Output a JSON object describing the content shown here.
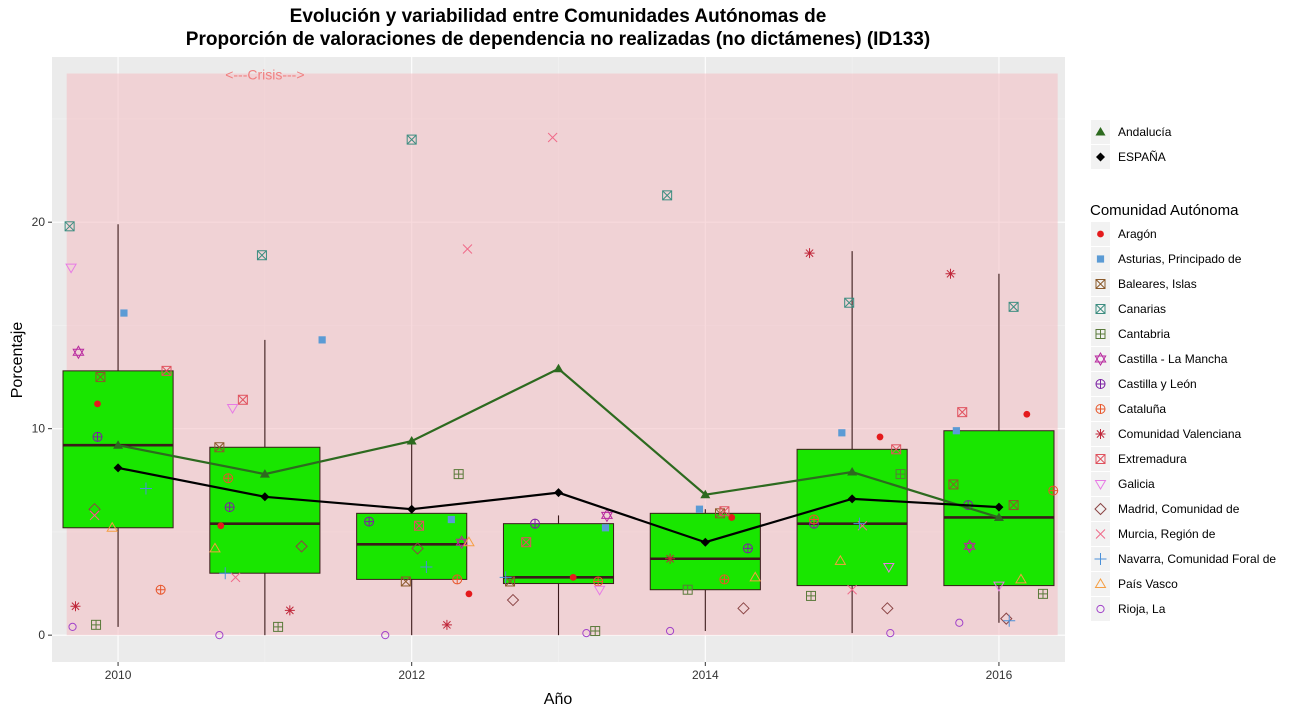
{
  "chart_data": {
    "type": "box",
    "title_line1": "Evolución y variabilidad entre Comunidades Autónomas de",
    "title_line2": "Proporción de valoraciones de dependencia no realizadas (no dictámenes) (ID133)",
    "xlabel": "Año",
    "ylabel": "Porcentaje",
    "xlim": [
      2009.55,
      2016.45
    ],
    "ylim": [
      -1.3,
      28.0
    ],
    "x_ticks": [
      2010,
      2012,
      2014,
      2016
    ],
    "y_ticks": [
      0,
      10,
      20
    ],
    "crisis_band": {
      "x": [
        2009.65,
        2016.4
      ],
      "y": [
        0,
        27.2
      ],
      "label": "<---Crisis--->",
      "label_x": 2011.0,
      "label_y": 26.9
    },
    "boxes": [
      {
        "x": 2010,
        "min": 0.4,
        "q1": 5.2,
        "median": 9.2,
        "q3": 12.8,
        "max": 19.9
      },
      {
        "x": 2011,
        "min": 0.0,
        "q1": 3.0,
        "median": 5.4,
        "q3": 9.1,
        "max": 14.3
      },
      {
        "x": 2012,
        "min": 0.0,
        "q1": 2.7,
        "median": 4.4,
        "q3": 5.9,
        "max": 9.4
      },
      {
        "x": 2013,
        "min": 0.0,
        "q1": 2.5,
        "median": 2.8,
        "q3": 5.4,
        "max": 5.8
      },
      {
        "x": 2014,
        "min": 0.2,
        "q1": 2.2,
        "median": 3.7,
        "q3": 5.9,
        "max": 6.1
      },
      {
        "x": 2015,
        "min": 0.1,
        "q1": 2.4,
        "median": 5.4,
        "q3": 9.0,
        "max": 18.6
      },
      {
        "x": 2016,
        "min": 0.6,
        "q1": 2.4,
        "median": 5.7,
        "q3": 9.9,
        "max": 17.5
      }
    ],
    "box_fill": "#19e600",
    "lines": [
      {
        "name": "Andalucía",
        "color": "#2d6a1f",
        "marker": "triangle",
        "x": [
          2010,
          2011,
          2012,
          2013,
          2014,
          2015,
          2016
        ],
        "y": [
          9.2,
          7.8,
          9.4,
          12.9,
          6.8,
          7.9,
          5.7
        ]
      },
      {
        "name": "ESPAÑA",
        "color": "#000000",
        "marker": "diamond",
        "x": [
          2010,
          2011,
          2012,
          2013,
          2014,
          2015,
          2016
        ],
        "y": [
          8.1,
          6.7,
          6.1,
          6.9,
          4.5,
          6.6,
          6.2
        ]
      }
    ],
    "scatter": [
      {
        "name": "Aragón",
        "symbol": "dot",
        "color": "#e41a1c",
        "points": [
          [
            2009.86,
            11.2
          ],
          [
            2010.7,
            5.3
          ],
          [
            2012.39,
            2.0
          ],
          [
            2013.1,
            2.8
          ],
          [
            2014.18,
            5.7
          ],
          [
            2015.19,
            9.6
          ],
          [
            2016.19,
            10.7
          ]
        ]
      },
      {
        "name": "Asturias, Principado de",
        "symbol": "square",
        "color": "#5b9bd5",
        "points": [
          [
            2010.04,
            15.6
          ],
          [
            2011.39,
            14.3
          ],
          [
            2012.27,
            5.6
          ],
          [
            2013.32,
            5.2
          ],
          [
            2013.96,
            6.1
          ],
          [
            2014.93,
            9.8
          ],
          [
            2015.71,
            9.9
          ]
        ]
      },
      {
        "name": "Baleares, Islas",
        "symbol": "boxx",
        "color": "#8b5a2b",
        "points": [
          [
            2009.88,
            12.5
          ],
          [
            2010.69,
            9.1
          ],
          [
            2011.96,
            2.6
          ],
          [
            2012.67,
            2.6
          ],
          [
            2014.1,
            5.9
          ],
          [
            2015.69,
            7.3
          ],
          [
            2016.1,
            6.3
          ]
        ]
      },
      {
        "name": "Canarias",
        "symbol": "boxx",
        "color": "#3c8d80",
        "points": [
          [
            2009.67,
            19.8
          ],
          [
            2010.98,
            18.4
          ],
          [
            2012.0,
            24.0
          ],
          [
            2013.74,
            21.3
          ],
          [
            2014.98,
            16.1
          ],
          [
            2016.1,
            15.9
          ]
        ]
      },
      {
        "name": "Cantabria",
        "symbol": "boxplus",
        "color": "#5a7a3a",
        "points": [
          [
            2009.85,
            0.5
          ],
          [
            2011.09,
            0.4
          ],
          [
            2012.32,
            7.8
          ],
          [
            2013.25,
            0.2
          ],
          [
            2013.88,
            2.2
          ],
          [
            2014.72,
            1.9
          ],
          [
            2015.33,
            7.8
          ],
          [
            2016.3,
            2.0
          ]
        ]
      },
      {
        "name": "Castilla - La Mancha",
        "symbol": "star6",
        "color": "#b8289e",
        "points": [
          [
            2009.73,
            13.7
          ],
          [
            2012.34,
            4.5
          ],
          [
            2013.33,
            5.8
          ],
          [
            2015.8,
            4.3
          ]
        ]
      },
      {
        "name": "Castilla y León",
        "symbol": "circleplus",
        "color": "#7b1fa2",
        "points": [
          [
            2009.86,
            9.6
          ],
          [
            2010.76,
            6.2
          ],
          [
            2011.71,
            5.5
          ],
          [
            2012.84,
            5.4
          ],
          [
            2014.29,
            4.2
          ],
          [
            2014.74,
            5.4
          ],
          [
            2015.79,
            6.3
          ]
        ]
      },
      {
        "name": "Cataluña",
        "symbol": "circleplus",
        "color": "#e8552a",
        "points": [
          [
            2010.29,
            2.2
          ],
          [
            2010.75,
            7.6
          ],
          [
            2012.31,
            2.7
          ],
          [
            2013.27,
            2.6
          ],
          [
            2014.13,
            2.7
          ],
          [
            2014.74,
            5.6
          ],
          [
            2016.37,
            7.0
          ]
        ]
      },
      {
        "name": "Comunidad Valenciana",
        "symbol": "star8",
        "color": "#c0273a",
        "points": [
          [
            2009.71,
            1.4
          ],
          [
            2011.17,
            1.2
          ],
          [
            2012.24,
            0.5
          ],
          [
            2013.76,
            3.7
          ],
          [
            2014.71,
            18.5
          ],
          [
            2015.67,
            17.5
          ]
        ]
      },
      {
        "name": "Extremadura",
        "symbol": "boxx",
        "color": "#e0525e",
        "points": [
          [
            2010.33,
            12.8
          ],
          [
            2010.85,
            11.4
          ],
          [
            2012.05,
            5.3
          ],
          [
            2012.78,
            4.5
          ],
          [
            2014.13,
            6.0
          ],
          [
            2015.3,
            9.0
          ],
          [
            2015.75,
            10.8
          ]
        ]
      },
      {
        "name": "Galicia",
        "symbol": "triangledown",
        "color": "#e77be5",
        "points": [
          [
            2009.68,
            17.8
          ],
          [
            2010.78,
            11.0
          ],
          [
            2013.28,
            2.2
          ],
          [
            2015.25,
            3.3
          ],
          [
            2016.0,
            2.4
          ]
        ]
      },
      {
        "name": "Madrid, Comunidad de",
        "symbol": "diamondopen",
        "color": "#8b4545",
        "points": [
          [
            2009.84,
            6.1
          ],
          [
            2011.25,
            4.3
          ],
          [
            2012.04,
            4.2
          ],
          [
            2012.69,
            1.7
          ],
          [
            2014.26,
            1.3
          ],
          [
            2015.24,
            1.3
          ],
          [
            2016.05,
            0.8
          ]
        ]
      },
      {
        "name": "Murcia, Región de",
        "symbol": "x",
        "color": "#f06b8a",
        "points": [
          [
            2009.84,
            5.8
          ],
          [
            2010.8,
            2.8
          ],
          [
            2012.38,
            18.7
          ],
          [
            2012.96,
            24.1
          ],
          [
            2015.0,
            2.2
          ],
          [
            2015.07,
            5.3
          ]
        ]
      },
      {
        "name": "Navarra, Comunidad Foral de",
        "symbol": "plus",
        "color": "#4a90d9",
        "points": [
          [
            2010.19,
            7.1
          ],
          [
            2010.73,
            3.0
          ],
          [
            2012.1,
            3.3
          ],
          [
            2012.64,
            2.8
          ],
          [
            2015.05,
            5.4
          ],
          [
            2016.07,
            0.7
          ]
        ]
      },
      {
        "name": "País Vasco",
        "symbol": "triangleopen",
        "color": "#f59e42",
        "points": [
          [
            2009.96,
            5.2
          ],
          [
            2010.66,
            4.2
          ],
          [
            2012.39,
            4.5
          ],
          [
            2014.34,
            2.8
          ],
          [
            2014.92,
            3.6
          ],
          [
            2016.15,
            2.7
          ]
        ]
      },
      {
        "name": "Rioja, La",
        "symbol": "circleopen",
        "color": "#a142c9",
        "points": [
          [
            2009.69,
            0.4
          ],
          [
            2010.69,
            0.0
          ],
          [
            2011.82,
            0.0
          ],
          [
            2013.19,
            0.1
          ],
          [
            2013.76,
            0.2
          ],
          [
            2015.26,
            0.1
          ],
          [
            2015.73,
            0.6
          ]
        ]
      }
    ],
    "legend": {
      "lines_entries": [
        "Andalucía",
        "ESPAÑA"
      ],
      "title": "Comunidad Autónoma",
      "position": "right"
    },
    "panel_background": "#ebebeb",
    "crisis_fill": "#f4c2c7"
  }
}
